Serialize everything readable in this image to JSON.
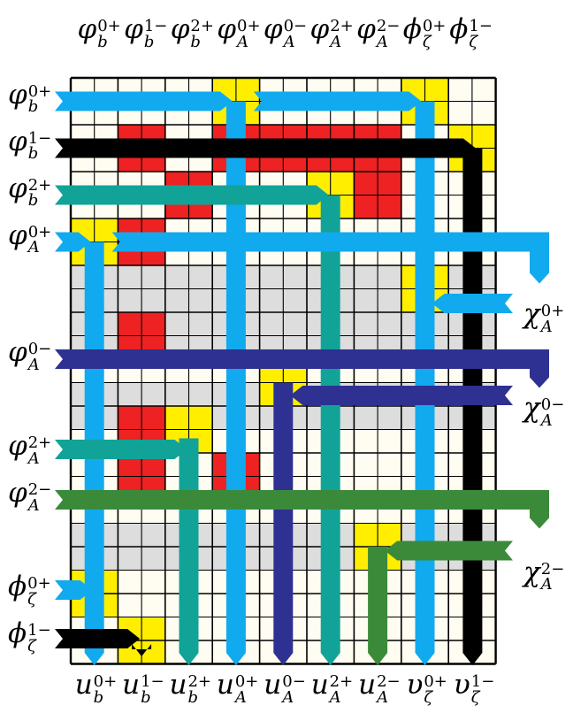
{
  "colors": {
    "cell_bg": "#fffdf2",
    "grid": "#000000",
    "gray_band": "#dddddd",
    "red": "#ee2222",
    "yellow": "#ffee00",
    "cyan": "#11aaee",
    "black": "#000000",
    "teal": "#11a397",
    "navy": "#2e3192",
    "green": "#3b8a3a"
  },
  "top_labels": [
    {
      "base": "φ",
      "sup": "0+",
      "sub": "b"
    },
    {
      "base": "φ",
      "sup": "1−",
      "sub": "b"
    },
    {
      "base": "φ",
      "sup": "2+",
      "sub": "b"
    },
    {
      "base": "φ",
      "sup": "0+",
      "sub": "A"
    },
    {
      "base": "φ",
      "sup": "0−",
      "sub": "A"
    },
    {
      "base": "φ",
      "sup": "2+",
      "sub": "A"
    },
    {
      "base": "φ",
      "sup": "2−",
      "sub": "A"
    },
    {
      "base": "ϕ",
      "sup": "0+",
      "sub": "ζ"
    },
    {
      "base": "ϕ",
      "sup": "1−",
      "sub": "ζ"
    }
  ],
  "left_labels": [
    {
      "base": "φ",
      "sup": "0+",
      "sub": "b",
      "row": 0
    },
    {
      "base": "φ",
      "sup": "1−",
      "sub": "b",
      "row": 1
    },
    {
      "base": "φ",
      "sup": "2+",
      "sub": "b",
      "row": 2
    },
    {
      "base": "φ",
      "sup": "0+",
      "sub": "A",
      "row": 3
    },
    {
      "base": "φ",
      "sup": "0−",
      "sub": "A",
      "row": 5.5
    },
    {
      "base": "φ",
      "sup": "2+",
      "sub": "A",
      "row": 7.5
    },
    {
      "base": "φ",
      "sup": "2−",
      "sub": "A",
      "row": 8.5
    },
    {
      "base": "ϕ",
      "sup": "0+",
      "sub": "ζ",
      "row": 10.5
    },
    {
      "base": "ϕ",
      "sup": "1−",
      "sub": "ζ",
      "row": 11.5
    }
  ],
  "right_labels": [
    {
      "base": "χ",
      "sup": "0+",
      "sub": "A",
      "row": 4.5
    },
    {
      "base": "χ",
      "sup": "0−",
      "sub": "A",
      "row": 6.5
    },
    {
      "base": "χ",
      "sup": "2−",
      "sub": "A",
      "row": 10
    }
  ],
  "bottom_labels": [
    {
      "base": "u",
      "sup": "0+",
      "sub": "b"
    },
    {
      "base": "u",
      "sup": "1−",
      "sub": "b"
    },
    {
      "base": "u",
      "sup": "2+",
      "sub": "b"
    },
    {
      "base": "u",
      "sup": "0+",
      "sub": "A"
    },
    {
      "base": "u",
      "sup": "0−",
      "sub": "A"
    },
    {
      "base": "u",
      "sup": "2+",
      "sub": "A"
    },
    {
      "base": "u",
      "sup": "2−",
      "sub": "A"
    },
    {
      "base": "υ",
      "sup": "0+",
      "sub": "ζ"
    },
    {
      "base": "υ",
      "sup": "1−",
      "sub": "ζ"
    }
  ]
}
